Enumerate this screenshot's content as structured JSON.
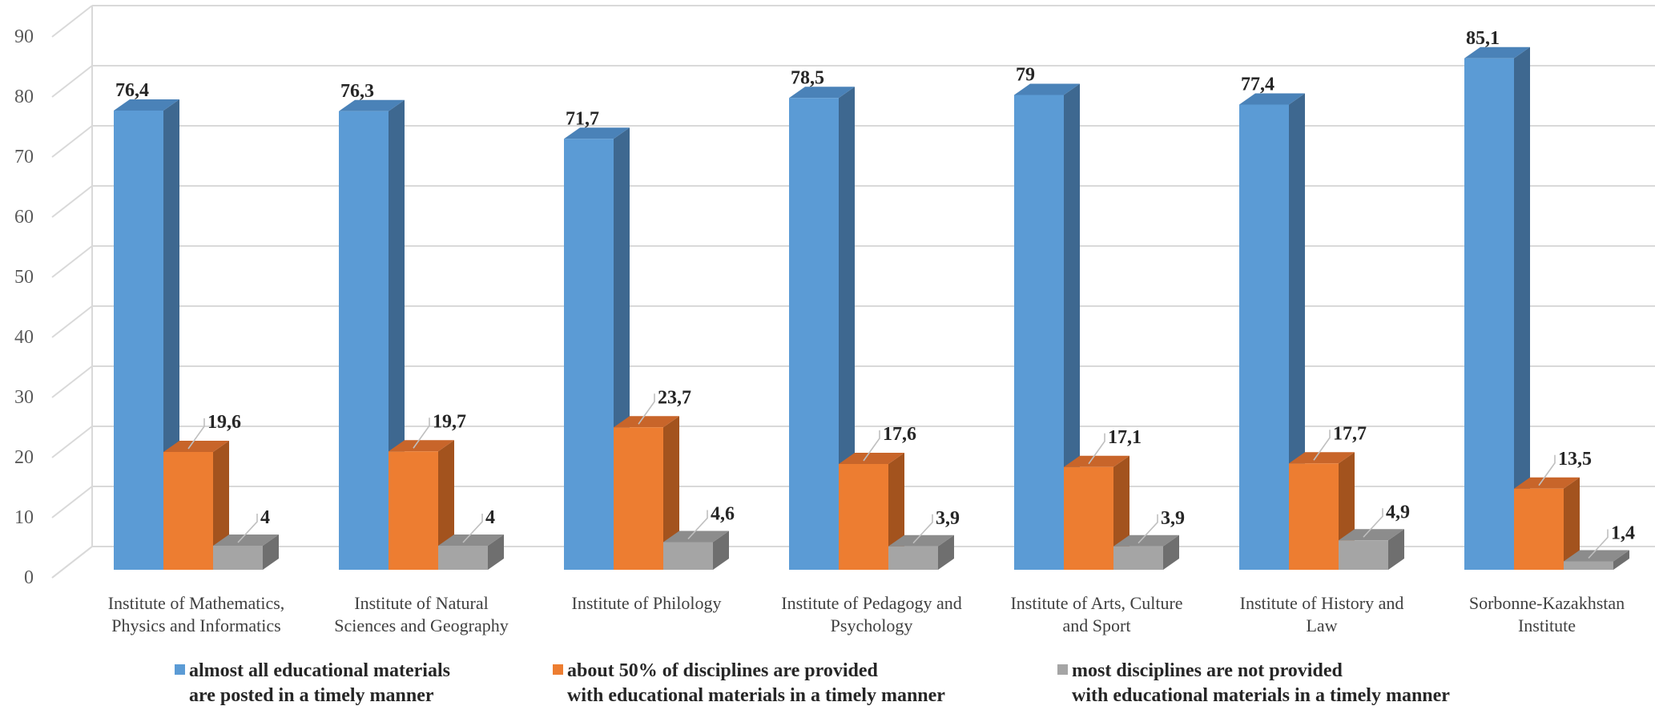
{
  "chart_data": {
    "type": "bar",
    "categories": [
      [
        "Institute of Mathematics,",
        "Physics and Informatics"
      ],
      [
        "Institute of Natural",
        "Sciences and Geography"
      ],
      [
        "Institute of Philology"
      ],
      [
        "Institute of Pedagogy and",
        "Psychology"
      ],
      [
        "Institute of Arts, Culture",
        "and Sport"
      ],
      [
        "Institute of History and",
        "Law"
      ],
      [
        "Sorbonne-Kazakhstan",
        "Institute"
      ]
    ],
    "series": [
      {
        "name": [
          "almost all educational materials",
          "are posted in a timely manner"
        ],
        "color": "#5b9bd5",
        "side_color": "#3e6890",
        "top_color": "#4a82b8",
        "values": [
          76.4,
          76.3,
          71.7,
          78.5,
          79,
          77.4,
          85.1
        ],
        "labels": [
          "76,4",
          "76,3",
          "71,7",
          "78,5",
          "79",
          "77,4",
          "85,1"
        ]
      },
      {
        "name": [
          "about 50% of disciplines are provided",
          "with educational materials in a timely manner"
        ],
        "color": "#ed7d31",
        "side_color": "#a3531e",
        "top_color": "#c8652a",
        "values": [
          19.6,
          19.7,
          23.7,
          17.6,
          17.1,
          17.7,
          13.5
        ],
        "labels": [
          "19,6",
          "19,7",
          "23,7",
          "17,6",
          "17,1",
          "17,7",
          "13,5"
        ]
      },
      {
        "name": [
          "most disciplines are not provided",
          "with educational materials in a timely manner"
        ],
        "color": "#a5a5a5",
        "side_color": "#6f6f6f",
        "top_color": "#8c8c8c",
        "values": [
          4,
          4,
          4.6,
          3.9,
          3.9,
          4.9,
          1.4
        ],
        "labels": [
          "4",
          "4",
          "4,6",
          "3,9",
          "3,9",
          "4,9",
          "1,4"
        ]
      }
    ],
    "yticks": [
      0,
      10,
      20,
      30,
      40,
      50,
      60,
      70,
      80,
      90
    ],
    "ylim": [
      0,
      90
    ],
    "grid": true,
    "legend_position": "bottom",
    "title": "",
    "xlabel": "",
    "ylabel": ""
  }
}
